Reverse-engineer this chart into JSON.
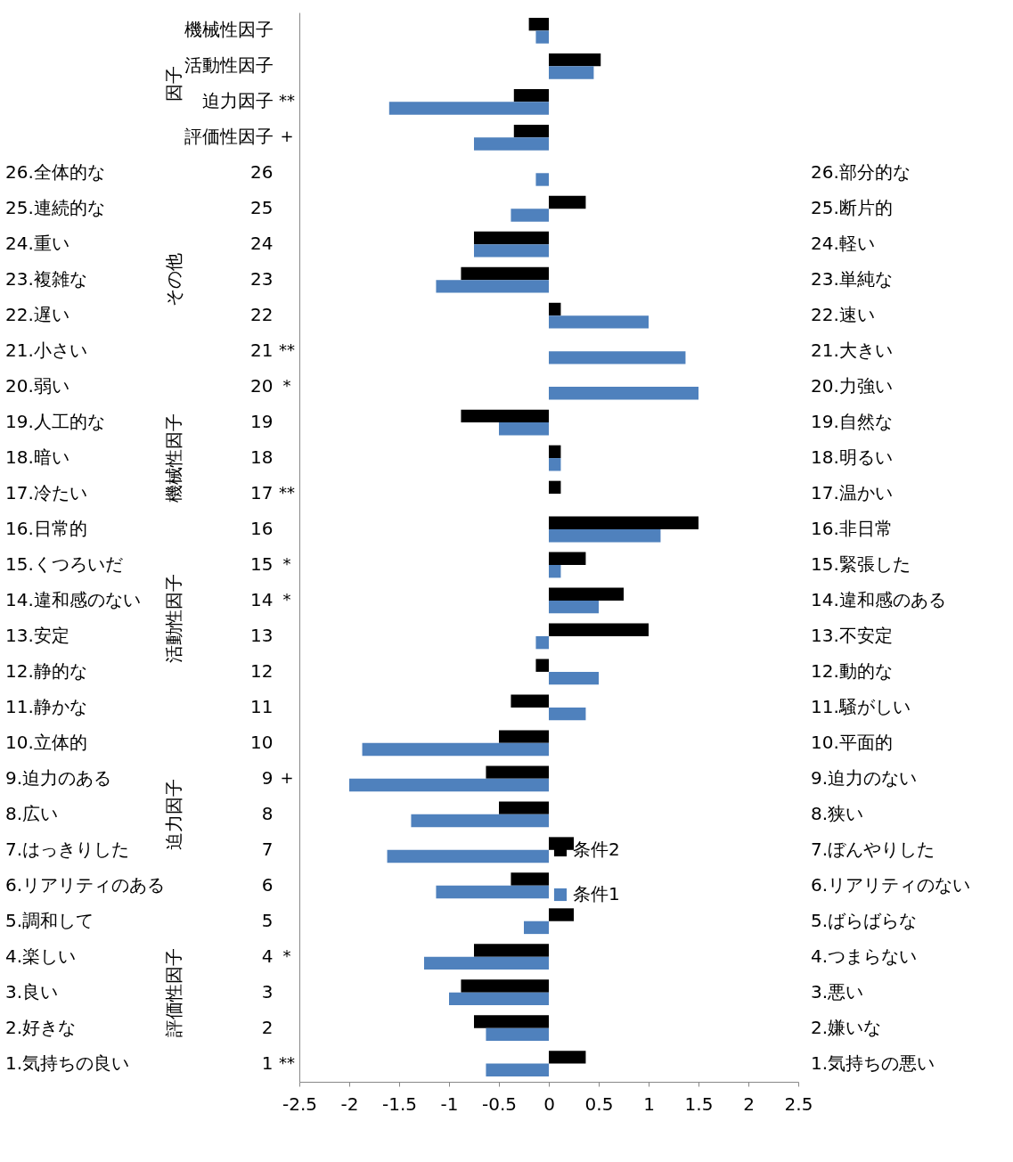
{
  "chart_data": {
    "type": "bar",
    "orientation": "horizontal",
    "categories": [
      "機械性因子",
      "活動性因子",
      "迫力因子",
      "評価性因子",
      "26",
      "25",
      "24",
      "23",
      "22",
      "21",
      "20",
      "19",
      "18",
      "17",
      "16",
      "15",
      "14",
      "13",
      "12",
      "11",
      "10",
      "9",
      "8",
      "7",
      "6",
      "5",
      "4",
      "3",
      "2",
      "1"
    ],
    "series": [
      {
        "name": "条件2",
        "color": "#000000",
        "values": [
          -0.2,
          0.52,
          -0.35,
          -0.35,
          0,
          0.37,
          -0.75,
          -0.88,
          0.12,
          0,
          0,
          -0.88,
          0.12,
          0.12,
          1.5,
          0.37,
          0.75,
          1.0,
          -0.13,
          -0.38,
          -0.5,
          -0.63,
          -0.5,
          0.25,
          -0.38,
          0.25,
          -0.75,
          -0.88,
          -0.75,
          0.37
        ]
      },
      {
        "name": "条件1",
        "color": "#4f81bd",
        "values": [
          -0.13,
          0.45,
          -1.6,
          -0.75,
          -0.13,
          -0.38,
          -0.75,
          -1.13,
          1.0,
          1.37,
          1.5,
          -0.5,
          0.12,
          0,
          1.12,
          0.12,
          0.5,
          -0.13,
          0.5,
          0.37,
          -1.87,
          -2.0,
          -1.38,
          -1.62,
          -1.13,
          -0.25,
          -1.25,
          -1.0,
          -0.63,
          -0.63
        ]
      }
    ],
    "xlim": [
      -2.5,
      2.5
    ],
    "xticks": [
      -2.5,
      -2,
      -1.5,
      -1,
      -0.5,
      0,
      0.5,
      1,
      1.5,
      2,
      2.5
    ],
    "legend": "bottom right",
    "annotations": [
      "因子",
      "その他",
      "機械性因子",
      "活動性因子",
      "迫力因子",
      "評価性因子",
      "**",
      "+",
      "**",
      "*",
      "**",
      "*",
      "*",
      "+",
      "*",
      "**",
      "26.全体的な",
      "25.連続的な",
      "24.重い",
      "23.複雑な",
      "22.遅い",
      "21.小さい",
      "20.弱い",
      "19.人工的な",
      "18.暗い",
      "17.冷たい",
      "16.日常的",
      "15.くつろいだ",
      "14.違和感のない",
      "13.安定",
      "12.静的な",
      "11.静かな",
      "10.立体的",
      "9.迫力のある",
      "8.広い",
      "7.はっきりした",
      "6.リアリティのある",
      "5.調和して",
      "4.楽しい",
      "3.良い",
      "2.好きな",
      "1.気持ちの良い",
      "26.部分的な",
      "25.断片的",
      "24.軽い",
      "23.単純な",
      "22.速い",
      "21.大きい",
      "20.力強い",
      "19.自然な",
      "18.明るい",
      "17.温かい",
      "16.非日常",
      "15.緊張した",
      "14.違和感のある",
      "13.不安定",
      "12.動的な",
      "11.騒がしい",
      "10.平面的",
      "9.迫力のない",
      "8.狭い",
      "7.ぼんやりした",
      "6.リアリティのない",
      "5.ばらばらな",
      "4.つまらない",
      "3.悪い",
      "2.嫌いな",
      "1.気持ちの悪い"
    ]
  }
}
